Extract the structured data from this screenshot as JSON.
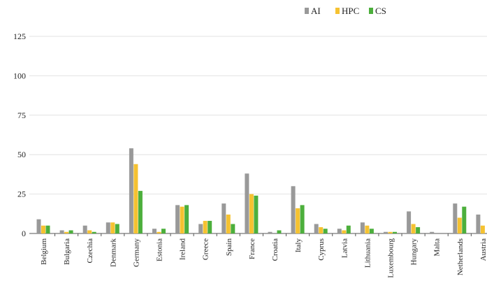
{
  "chart_data": {
    "type": "bar",
    "categories": [
      "Belgium",
      "Bulgaria",
      "Czechia",
      "Denmark",
      "Germany",
      "Estonia",
      "Ireland",
      "Greece",
      "Spain",
      "France",
      "Croatia",
      "Italy",
      "Cyprus",
      "Latvia",
      "Lithuania",
      "Luxembourg",
      "Hungary",
      "Malta",
      "Netherlands",
      "Austria"
    ],
    "series": [
      {
        "name": "AI",
        "color": "#999999",
        "values": [
          9,
          2,
          5,
          7,
          54,
          3,
          18,
          6,
          19,
          38,
          1,
          30,
          6,
          3,
          7,
          1,
          14,
          1,
          19,
          12
        ]
      },
      {
        "name": "HPC",
        "color": "#f5c231",
        "values": [
          5,
          1,
          2,
          7,
          44,
          1,
          17,
          8,
          12,
          25,
          0,
          16,
          4,
          2,
          5,
          1,
          6,
          0,
          10,
          5
        ]
      },
      {
        "name": "CS",
        "color": "#4caf3c",
        "values": [
          5,
          2,
          1,
          6,
          27,
          3,
          18,
          8,
          6,
          24,
          2,
          18,
          3,
          5,
          3,
          1,
          4,
          0,
          17,
          0
        ]
      }
    ],
    "yticks": [
      0,
      25,
      50,
      75,
      100,
      125
    ],
    "ylim": [
      0,
      125
    ],
    "grid": true,
    "legend": "top-right",
    "title": "",
    "xlabel": "",
    "ylabel": ""
  }
}
